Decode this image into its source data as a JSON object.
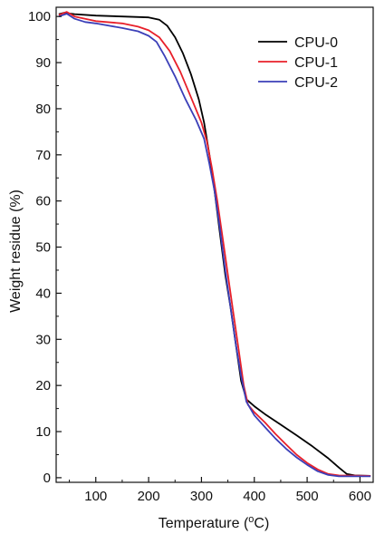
{
  "chart_data": {
    "type": "line",
    "xlabel": "Temperature (°C)",
    "xlabel_parts": [
      "Temperature (",
      "o",
      "C)"
    ],
    "ylabel": "Weight residue (%)",
    "xlim": [
      25,
      625
    ],
    "ylim": [
      -1,
      102
    ],
    "xticks": [
      100,
      200,
      300,
      400,
      500,
      600
    ],
    "yticks": [
      0,
      10,
      20,
      30,
      40,
      50,
      60,
      70,
      80,
      90,
      100
    ],
    "grid": false,
    "legend_position": "top-right",
    "series": [
      {
        "name": "CPU-0",
        "color": "#000000",
        "points": [
          [
            30,
            100.5
          ],
          [
            40,
            100.8
          ],
          [
            60,
            100.5
          ],
          [
            100,
            100.2
          ],
          [
            150,
            100
          ],
          [
            200,
            99.8
          ],
          [
            220,
            99.3
          ],
          [
            235,
            98
          ],
          [
            250,
            95.5
          ],
          [
            265,
            92
          ],
          [
            280,
            87.5
          ],
          [
            295,
            82
          ],
          [
            305,
            77
          ],
          [
            315,
            70
          ],
          [
            325,
            62
          ],
          [
            335,
            53
          ],
          [
            345,
            44
          ],
          [
            355,
            37
          ],
          [
            365,
            29
          ],
          [
            375,
            21
          ],
          [
            385,
            17
          ],
          [
            400,
            15.5
          ],
          [
            420,
            13.8
          ],
          [
            450,
            11.5
          ],
          [
            480,
            9.2
          ],
          [
            510,
            6.8
          ],
          [
            540,
            4.2
          ],
          [
            560,
            2.2
          ],
          [
            575,
            0.8
          ],
          [
            590,
            0.5
          ],
          [
            620,
            0.4
          ]
        ]
      },
      {
        "name": "CPU-1",
        "color": "#e8202a",
        "points": [
          [
            30,
            100.3
          ],
          [
            45,
            101
          ],
          [
            60,
            100
          ],
          [
            80,
            99.5
          ],
          [
            100,
            99
          ],
          [
            150,
            98.5
          ],
          [
            180,
            97.8
          ],
          [
            200,
            97
          ],
          [
            220,
            95.5
          ],
          [
            240,
            92.5
          ],
          [
            260,
            88
          ],
          [
            280,
            82.5
          ],
          [
            300,
            77
          ],
          [
            310,
            73
          ],
          [
            320,
            67
          ],
          [
            330,
            60
          ],
          [
            340,
            52
          ],
          [
            350,
            44
          ],
          [
            360,
            36
          ],
          [
            370,
            28
          ],
          [
            380,
            20
          ],
          [
            388,
            15.8
          ],
          [
            400,
            14.2
          ],
          [
            420,
            12
          ],
          [
            440,
            9.5
          ],
          [
            460,
            7.2
          ],
          [
            480,
            5
          ],
          [
            500,
            3.2
          ],
          [
            520,
            1.8
          ],
          [
            540,
            0.8
          ],
          [
            560,
            0.5
          ],
          [
            620,
            0.4
          ]
        ]
      },
      {
        "name": "CPU-2",
        "color": "#3b3fb8",
        "points": [
          [
            30,
            100
          ],
          [
            45,
            100.6
          ],
          [
            60,
            99.5
          ],
          [
            80,
            98.8
          ],
          [
            100,
            98.5
          ],
          [
            150,
            97.5
          ],
          [
            180,
            96.8
          ],
          [
            200,
            95.8
          ],
          [
            215,
            94.5
          ],
          [
            230,
            91.5
          ],
          [
            250,
            87
          ],
          [
            270,
            82
          ],
          [
            290,
            77.5
          ],
          [
            305,
            73.5
          ],
          [
            315,
            68
          ],
          [
            325,
            62
          ],
          [
            335,
            54
          ],
          [
            345,
            45
          ],
          [
            355,
            37
          ],
          [
            365,
            29
          ],
          [
            375,
            22
          ],
          [
            385,
            16.5
          ],
          [
            400,
            13.5
          ],
          [
            420,
            11
          ],
          [
            440,
            8.5
          ],
          [
            460,
            6.3
          ],
          [
            480,
            4.4
          ],
          [
            500,
            2.8
          ],
          [
            520,
            1.4
          ],
          [
            540,
            0.6
          ],
          [
            560,
            0.3
          ],
          [
            620,
            0.3
          ]
        ]
      }
    ]
  }
}
